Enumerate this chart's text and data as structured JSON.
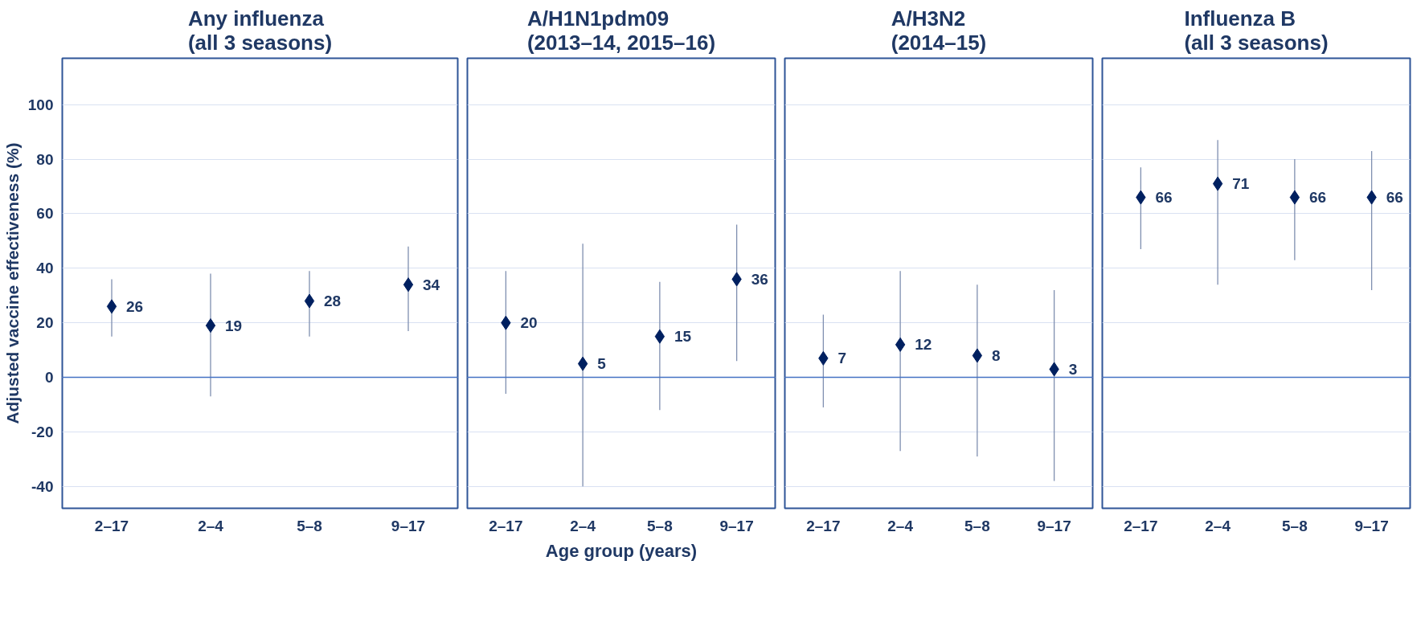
{
  "chart_data": [
    {
      "type": "scatter",
      "title": "Any influenza\n(all 3 seasons)",
      "ylabel": "Adjusted vaccine effectiveness (%)",
      "categories": [
        "2–17",
        "2–4",
        "5–8",
        "9–17"
      ],
      "series": [
        {
          "color": "#002060",
          "values": [
            26,
            19,
            28,
            34
          ],
          "errors": [
            [
              15,
              36
            ],
            [
              -7,
              38
            ],
            [
              15,
              39
            ],
            [
              17,
              48
            ]
          ]
        }
      ],
      "ylim": [
        -48,
        117
      ],
      "yticks": [
        -40,
        -20,
        0,
        20,
        40,
        60,
        80,
        100
      ],
      "grid": "y",
      "marker": "diamond",
      "data_labels": true,
      "ref_lines": [
        {
          "axis": "y",
          "value": 0,
          "color": "#4472c4"
        }
      ]
    },
    {
      "type": "scatter",
      "title": "A/H1N1pdm09\n(2013–14, 2015–16)",
      "xlabel": "Age group (years)",
      "categories": [
        "2–17",
        "2–4",
        "5–8",
        "9–17"
      ],
      "series": [
        {
          "color": "#002060",
          "values": [
            20,
            5,
            15,
            36
          ],
          "errors": [
            [
              -6,
              39
            ],
            [
              -40,
              49
            ],
            [
              -12,
              35
            ],
            [
              6,
              56
            ]
          ]
        }
      ],
      "ylim": [
        -48,
        117
      ],
      "yticks": [
        -40,
        -20,
        0,
        20,
        40,
        60,
        80,
        100
      ],
      "tick_labels": "x",
      "grid": "y",
      "marker": "diamond",
      "data_labels": true,
      "ref_lines": [
        {
          "axis": "y",
          "value": 0,
          "color": "#4472c4"
        }
      ]
    },
    {
      "type": "scatter",
      "title": "A/H3N2\n(2014–15)",
      "categories": [
        "2–17",
        "2–4",
        "5–8",
        "9–17"
      ],
      "series": [
        {
          "color": "#002060",
          "values": [
            7,
            12,
            8,
            3
          ],
          "errors": [
            [
              -11,
              23
            ],
            [
              -27,
              39
            ],
            [
              -29,
              34
            ],
            [
              -38,
              32
            ]
          ]
        }
      ],
      "ylim": [
        -48,
        117
      ],
      "yticks": [
        -40,
        -20,
        0,
        20,
        40,
        60,
        80,
        100
      ],
      "tick_labels": "x",
      "grid": "y",
      "marker": "diamond",
      "data_labels": true,
      "ref_lines": [
        {
          "axis": "y",
          "value": 0,
          "color": "#4472c4"
        }
      ]
    },
    {
      "type": "scatter",
      "title": "Influenza B\n(all 3 seasons)",
      "categories": [
        "2–17",
        "2–4",
        "5–8",
        "9–17"
      ],
      "series": [
        {
          "color": "#002060",
          "values": [
            66,
            71,
            66,
            66
          ],
          "errors": [
            [
              47,
              77
            ],
            [
              34,
              87
            ],
            [
              43,
              80
            ],
            [
              32,
              83
            ]
          ]
        }
      ],
      "ylim": [
        -48,
        117
      ],
      "yticks": [
        -40,
        -20,
        0,
        20,
        40,
        60,
        80,
        100
      ],
      "tick_labels": "x",
      "grid": "y",
      "marker": "diamond",
      "data_labels": true,
      "ref_lines": [
        {
          "axis": "y",
          "value": 0,
          "color": "#4472c4"
        }
      ]
    }
  ]
}
